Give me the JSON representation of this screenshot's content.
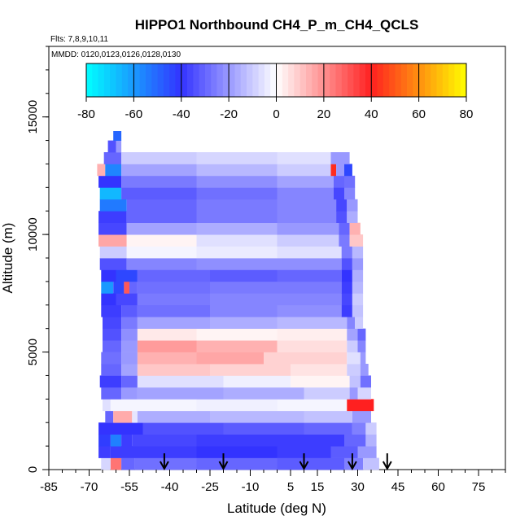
{
  "chart_data": {
    "type": "heatmap",
    "title": "HIPPO1 Northbound CH4_P_m_CH4_QCLS",
    "flights_label": "Flts: 7,8,9,10,11",
    "mmdd_label": "MMDD: 0120,0123,0126,0128,0130",
    "xlabel": "Latitude (deg N)",
    "ylabel": "Altitude (m)",
    "xlim": [
      -85,
      85
    ],
    "ylim": [
      0,
      18000
    ],
    "x_ticks": [
      -85,
      -70,
      -55,
      -40,
      -25,
      -10,
      5,
      15,
      30,
      45,
      60,
      75
    ],
    "x_tick_labels": [
      "-85",
      "-70",
      "-55",
      "-40",
      "-25",
      "-10",
      "5",
      "15",
      "30",
      "45",
      "60",
      "75"
    ],
    "y_ticks": [
      0,
      5000,
      10000,
      15000
    ],
    "y_tick_labels": [
      "0",
      "5000",
      "10000",
      "15000"
    ],
    "colorbar": {
      "ticks": [
        -80,
        -60,
        -40,
        -20,
        0,
        20,
        40,
        60,
        80
      ],
      "tick_labels": [
        "-80",
        "-60",
        "-40",
        "-20",
        "0",
        "20",
        "40",
        "60",
        "80"
      ],
      "colors": [
        "#00ffff",
        "#3333ff",
        "#ffffff",
        "#ff2020",
        "#ffff00"
      ]
    },
    "arrows_latitude": [
      -42,
      -20,
      10,
      28,
      41
    ],
    "layers": [
      {
        "y0": 0,
        "y1": 500,
        "seg": [
          [
            -65.5,
            -62,
            -8
          ],
          [
            -62,
            -58,
            25
          ],
          [
            -58,
            -53,
            -30
          ],
          [
            -53,
            -30,
            -28
          ],
          [
            -30,
            0,
            -30
          ],
          [
            0,
            25,
            -32
          ],
          [
            25,
            32,
            -25
          ],
          [
            32,
            38,
            -12
          ]
        ]
      },
      {
        "y0": 500,
        "y1": 1000,
        "seg": [
          [
            -66.5,
            -62,
            -38
          ],
          [
            -62,
            -30,
            -38
          ],
          [
            -30,
            0,
            -40
          ],
          [
            0,
            20,
            -38
          ],
          [
            20,
            30,
            -32
          ],
          [
            30,
            37,
            -20
          ]
        ]
      },
      {
        "y0": 1000,
        "y1": 1500,
        "seg": [
          [
            -66.5,
            -62,
            -42
          ],
          [
            -62,
            -58,
            -55
          ],
          [
            -58,
            -54,
            -38
          ],
          [
            -54,
            -30,
            -36
          ],
          [
            -30,
            0,
            -38
          ],
          [
            0,
            25,
            -38
          ],
          [
            25,
            33,
            -30
          ],
          [
            33,
            37,
            -15
          ]
        ]
      },
      {
        "y0": 1500,
        "y1": 2000,
        "seg": [
          [
            -66.5,
            -50,
            -40
          ],
          [
            -50,
            -20,
            -34
          ],
          [
            -20,
            10,
            -32
          ],
          [
            10,
            28,
            -30
          ],
          [
            28,
            33,
            -25
          ],
          [
            33,
            37,
            -10
          ]
        ]
      },
      {
        "y0": 2000,
        "y1": 2500,
        "seg": [
          [
            -64,
            -61,
            -30
          ],
          [
            -61,
            -54,
            15
          ],
          [
            -54,
            -52,
            -5
          ],
          [
            -52,
            -25,
            -16
          ],
          [
            -25,
            10,
            -14
          ],
          [
            10,
            28,
            -12
          ],
          [
            28,
            35,
            -20
          ]
        ]
      },
      {
        "y0": 2500,
        "y1": 3000,
        "seg": [
          [
            -65,
            -62,
            -6
          ],
          [
            -62,
            -30,
            -2
          ],
          [
            -30,
            0,
            -3
          ],
          [
            0,
            26,
            -2
          ],
          [
            26,
            36,
            40
          ]
        ]
      },
      {
        "y0": 3000,
        "y1": 3500,
        "seg": [
          [
            -65.5,
            -58,
            -30
          ],
          [
            -58,
            -52,
            -20
          ],
          [
            -52,
            -20,
            -18
          ],
          [
            -20,
            10,
            -16
          ],
          [
            10,
            27,
            -10
          ],
          [
            27,
            30,
            -20
          ],
          [
            30,
            35,
            -8
          ]
        ]
      },
      {
        "y0": 3500,
        "y1": 4000,
        "seg": [
          [
            -66,
            -58,
            -38
          ],
          [
            -58,
            -52,
            -30
          ],
          [
            -52,
            -20,
            -6
          ],
          [
            -20,
            5,
            -3
          ],
          [
            5,
            27,
            2
          ],
          [
            27,
            31,
            -12
          ],
          [
            31,
            35,
            -28
          ]
        ]
      },
      {
        "y0": 4000,
        "y1": 4500,
        "seg": [
          [
            -65.5,
            -58,
            -30
          ],
          [
            -58,
            -52,
            -18
          ],
          [
            -52,
            -25,
            10
          ],
          [
            -25,
            5,
            8
          ],
          [
            5,
            26,
            5
          ],
          [
            26,
            31,
            -10
          ],
          [
            31,
            34,
            -20
          ]
        ]
      },
      {
        "y0": 4500,
        "y1": 5000,
        "seg": [
          [
            -65.5,
            -58,
            -28
          ],
          [
            -58,
            -52,
            -20
          ],
          [
            -52,
            -30,
            14
          ],
          [
            -30,
            -5,
            16
          ],
          [
            -5,
            26,
            8
          ],
          [
            26,
            31,
            -6
          ],
          [
            31,
            33,
            -20
          ]
        ]
      },
      {
        "y0": 5000,
        "y1": 5500,
        "seg": [
          [
            -65,
            -58,
            -30
          ],
          [
            -58,
            -52,
            -20
          ],
          [
            -52,
            -30,
            18
          ],
          [
            -30,
            0,
            14
          ],
          [
            0,
            26,
            6
          ],
          [
            26,
            30,
            -10
          ],
          [
            30,
            33,
            -24
          ]
        ]
      },
      {
        "y0": 5500,
        "y1": 6000,
        "seg": [
          [
            -65,
            -58,
            -34
          ],
          [
            -58,
            -52,
            -22
          ],
          [
            -52,
            -30,
            4
          ],
          [
            -30,
            0,
            2
          ],
          [
            0,
            26,
            3
          ],
          [
            26,
            30,
            -18
          ],
          [
            30,
            33,
            -30
          ]
        ]
      },
      {
        "y0": 6000,
        "y1": 6500,
        "seg": [
          [
            -65,
            -58,
            -36
          ],
          [
            -58,
            -52,
            -26
          ],
          [
            -52,
            -25,
            -18
          ],
          [
            -25,
            0,
            -16
          ],
          [
            0,
            26,
            -14
          ],
          [
            26,
            29,
            -24
          ],
          [
            29,
            32,
            -10
          ]
        ]
      },
      {
        "y0": 6500,
        "y1": 7000,
        "seg": [
          [
            -65.5,
            -58,
            -38
          ],
          [
            -58,
            -52,
            -32
          ],
          [
            -52,
            -25,
            -28
          ],
          [
            -25,
            0,
            -24
          ],
          [
            0,
            24,
            -22
          ],
          [
            24,
            28,
            -38
          ],
          [
            28,
            32,
            -12
          ]
        ]
      },
      {
        "y0": 7000,
        "y1": 7500,
        "seg": [
          [
            -65.5,
            -60,
            -40
          ],
          [
            -60,
            -52,
            -36
          ],
          [
            -52,
            -25,
            -26
          ],
          [
            -25,
            0,
            -24
          ],
          [
            0,
            24,
            -24
          ],
          [
            24,
            28,
            -36
          ],
          [
            28,
            32,
            -10
          ]
        ]
      },
      {
        "y0": 7500,
        "y1": 8000,
        "seg": [
          [
            -65.5,
            -61,
            -60
          ],
          [
            -61,
            -57,
            -44
          ],
          [
            -57,
            -55,
            30
          ],
          [
            -55,
            -52,
            -30
          ],
          [
            -52,
            -25,
            -28
          ],
          [
            -25,
            0,
            -26
          ],
          [
            0,
            24,
            -26
          ],
          [
            24,
            28,
            -38
          ],
          [
            28,
            32,
            -14
          ]
        ]
      },
      {
        "y0": 8000,
        "y1": 8500,
        "seg": [
          [
            -65.5,
            -60,
            -40
          ],
          [
            -60,
            -52,
            -44
          ],
          [
            -52,
            -25,
            -30
          ],
          [
            -25,
            0,
            -32
          ],
          [
            0,
            24,
            -30
          ],
          [
            24,
            28,
            -40
          ],
          [
            28,
            32,
            -16
          ]
        ]
      },
      {
        "y0": 8500,
        "y1": 9000,
        "seg": [
          [
            -66,
            -56,
            -34
          ],
          [
            -56,
            -30,
            -24
          ],
          [
            -30,
            0,
            -22
          ],
          [
            0,
            24,
            -22
          ],
          [
            24,
            28,
            -34
          ],
          [
            28,
            32,
            -20
          ]
        ]
      },
      {
        "y0": 9000,
        "y1": 9500,
        "seg": [
          [
            -66,
            -56,
            -10
          ],
          [
            -56,
            -30,
            -2
          ],
          [
            -30,
            0,
            -4
          ],
          [
            0,
            24,
            -6
          ],
          [
            24,
            28,
            -26
          ],
          [
            28,
            32,
            -14
          ]
        ]
      },
      {
        "y0": 9500,
        "y1": 10000,
        "seg": [
          [
            -66.5,
            -56,
            16
          ],
          [
            -56,
            -30,
            2
          ],
          [
            -30,
            0,
            -6
          ],
          [
            0,
            23,
            -10
          ],
          [
            23,
            27,
            -26
          ],
          [
            27,
            32,
            10
          ]
        ]
      },
      {
        "y0": 10000,
        "y1": 10500,
        "seg": [
          [
            -66.5,
            -56,
            -36
          ],
          [
            -56,
            -30,
            -18
          ],
          [
            -30,
            0,
            -16
          ],
          [
            0,
            23,
            -20
          ],
          [
            23,
            27,
            -30
          ],
          [
            27,
            31,
            14
          ]
        ]
      },
      {
        "y0": 10500,
        "y1": 11000,
        "seg": [
          [
            -66.5,
            -56,
            -38
          ],
          [
            -56,
            -30,
            -30
          ],
          [
            -30,
            0,
            -26
          ],
          [
            0,
            22,
            -24
          ],
          [
            22,
            26,
            -34
          ],
          [
            26,
            30,
            -16
          ]
        ]
      },
      {
        "y0": 11000,
        "y1": 11500,
        "seg": [
          [
            -66,
            -56,
            -54
          ],
          [
            -56,
            -30,
            -30
          ],
          [
            -30,
            0,
            -26
          ],
          [
            0,
            22,
            -24
          ],
          [
            22,
            26,
            -36
          ],
          [
            26,
            30,
            -20
          ]
        ]
      },
      {
        "y0": 11500,
        "y1": 12000,
        "seg": [
          [
            -66,
            -58,
            -66
          ],
          [
            -58,
            -30,
            -32
          ],
          [
            -30,
            0,
            -28
          ],
          [
            0,
            21,
            -24
          ],
          [
            21,
            25,
            -36
          ],
          [
            25,
            29,
            -24
          ]
        ]
      },
      {
        "y0": 12000,
        "y1": 12500,
        "seg": [
          [
            -66.5,
            -58,
            -40
          ],
          [
            -58,
            -30,
            -26
          ],
          [
            -30,
            0,
            -22
          ],
          [
            0,
            21,
            -18
          ],
          [
            21,
            25,
            -30
          ],
          [
            25,
            29,
            -28
          ]
        ]
      },
      {
        "y0": 12500,
        "y1": 13000,
        "seg": [
          [
            -67,
            -64,
            14
          ],
          [
            -64,
            -58,
            -56
          ],
          [
            -58,
            -30,
            -18
          ],
          [
            -30,
            0,
            -14
          ],
          [
            0,
            20,
            -10
          ],
          [
            20,
            22,
            42
          ],
          [
            22,
            25,
            -20
          ],
          [
            25,
            28,
            -44
          ]
        ]
      },
      {
        "y0": 13000,
        "y1": 13500,
        "seg": [
          [
            -64.5,
            -58,
            -30
          ],
          [
            -58,
            -30,
            -10
          ],
          [
            -30,
            0,
            -8
          ],
          [
            0,
            20,
            -6
          ],
          [
            20,
            27,
            -20
          ]
        ]
      },
      {
        "y0": 13500,
        "y1": 14000,
        "seg": [
          [
            -63,
            -60,
            -34
          ],
          [
            -60,
            -58,
            -20
          ]
        ]
      },
      {
        "y0": 14000,
        "y1": 14400,
        "seg": [
          [
            -61,
            -58,
            -50
          ]
        ]
      }
    ]
  }
}
